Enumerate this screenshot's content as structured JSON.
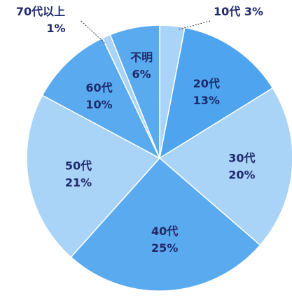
{
  "chart_data": {
    "type": "pie",
    "title": "",
    "slices": [
      {
        "label": "10代",
        "percent_label": "3%",
        "value": 3,
        "color": "#a9d3f7"
      },
      {
        "label": "20代",
        "percent_label": "13%",
        "value": 13,
        "color": "#4fa4ef"
      },
      {
        "label": "30代",
        "percent_label": "20%",
        "value": 20,
        "color": "#a9d3f7"
      },
      {
        "label": "40代",
        "percent_label": "25%",
        "value": 25,
        "color": "#5aaaf0"
      },
      {
        "label": "50代",
        "percent_label": "21%",
        "value": 21,
        "color": "#a9d3f7"
      },
      {
        "label": "60代",
        "percent_label": "10%",
        "value": 10,
        "color": "#5aaaf0"
      },
      {
        "label": "70代以上",
        "percent_label": "1%",
        "value": 1,
        "color": "#a9d3f7"
      },
      {
        "label": "不明",
        "percent_label": "6%",
        "value": 6,
        "color": "#5aaaf0"
      }
    ],
    "start": "12 o'clock",
    "direction": "clockwise"
  }
}
